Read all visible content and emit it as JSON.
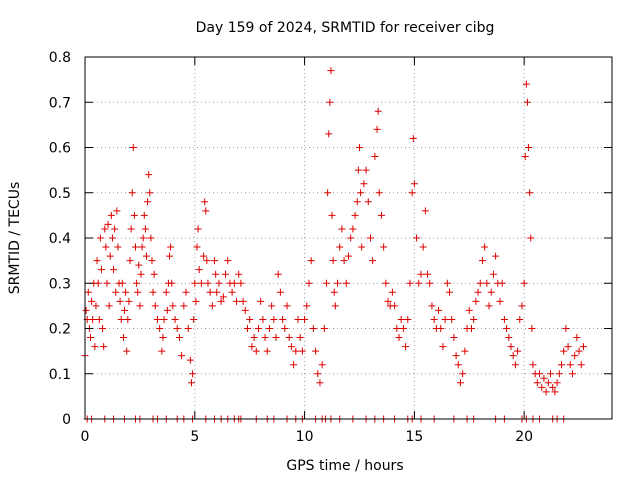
{
  "chart_data": {
    "type": "scatter",
    "title": "Day 159 of 2024, SRMTID for receiver cibg",
    "xlabel": "GPS time / hours",
    "ylabel": "SRMTID / TECUs",
    "xlim": [
      0,
      24
    ],
    "ylim": [
      0,
      0.8
    ],
    "xticks": [
      0,
      5,
      10,
      15,
      20
    ],
    "xtick_labels": [
      "0",
      "5",
      "10",
      "15",
      "20"
    ],
    "yticks": [
      0,
      0.1,
      0.2,
      0.3,
      0.4,
      0.5,
      0.6,
      0.7,
      0.8
    ],
    "ytick_labels": [
      "0",
      "0.1",
      "0.2",
      "0.3",
      "0.4",
      "0.5",
      "0.6",
      "0.7",
      "0.8"
    ],
    "grid": true,
    "marker": "+",
    "color": "#dd0000",
    "series": [
      {
        "name": "SRMTID",
        "points": [
          [
            0.0,
            0.14
          ],
          [
            0.05,
            0.24
          ],
          [
            0.1,
            0.22
          ],
          [
            0.15,
            0.28
          ],
          [
            0.2,
            0.2
          ],
          [
            0.25,
            0.18
          ],
          [
            0.3,
            0.26
          ],
          [
            0.35,
            0.22
          ],
          [
            0.4,
            0.3
          ],
          [
            0.45,
            0.16
          ],
          [
            0.5,
            0.25
          ],
          [
            0.55,
            0.35
          ],
          [
            0.6,
            0.3
          ],
          [
            0.65,
            0.22
          ],
          [
            0.7,
            0.4
          ],
          [
            0.75,
            0.33
          ],
          [
            0.8,
            0.2
          ],
          [
            0.85,
            0.16
          ],
          [
            0.9,
            0.42
          ],
          [
            0.95,
            0.38
          ],
          [
            1.0,
            0.3
          ],
          [
            1.05,
            0.43
          ],
          [
            1.1,
            0.25
          ],
          [
            1.15,
            0.36
          ],
          [
            1.2,
            0.45
          ],
          [
            1.25,
            0.4
          ],
          [
            1.3,
            0.33
          ],
          [
            1.35,
            0.42
          ],
          [
            1.4,
            0.28
          ],
          [
            1.45,
            0.46
          ],
          [
            1.5,
            0.38
          ],
          [
            1.55,
            0.3
          ],
          [
            1.6,
            0.26
          ],
          [
            1.65,
            0.22
          ],
          [
            1.7,
            0.3
          ],
          [
            1.75,
            0.18
          ],
          [
            1.8,
            0.24
          ],
          [
            1.85,
            0.28
          ],
          [
            1.9,
            0.15
          ],
          [
            1.95,
            0.22
          ],
          [
            2.0,
            0.26
          ],
          [
            2.05,
            0.35
          ],
          [
            2.1,
            0.42
          ],
          [
            2.15,
            0.5
          ],
          [
            2.2,
            0.6
          ],
          [
            2.25,
            0.45
          ],
          [
            2.3,
            0.38
          ],
          [
            2.35,
            0.3
          ],
          [
            2.4,
            0.28
          ],
          [
            2.45,
            0.34
          ],
          [
            2.5,
            0.25
          ],
          [
            2.55,
            0.32
          ],
          [
            2.6,
            0.38
          ],
          [
            2.65,
            0.4
          ],
          [
            2.7,
            0.45
          ],
          [
            2.75,
            0.42
          ],
          [
            2.8,
            0.36
          ],
          [
            2.85,
            0.48
          ],
          [
            2.9,
            0.54
          ],
          [
            2.95,
            0.5
          ],
          [
            3.0,
            0.4
          ],
          [
            3.05,
            0.35
          ],
          [
            3.1,
            0.28
          ],
          [
            3.15,
            0.32
          ],
          [
            3.2,
            0.25
          ],
          [
            3.3,
            0.22
          ],
          [
            3.4,
            0.2
          ],
          [
            3.5,
            0.15
          ],
          [
            3.55,
            0.18
          ],
          [
            3.6,
            0.22
          ],
          [
            3.7,
            0.28
          ],
          [
            3.75,
            0.24
          ],
          [
            3.8,
            0.3
          ],
          [
            3.85,
            0.36
          ],
          [
            3.9,
            0.38
          ],
          [
            3.95,
            0.3
          ],
          [
            4.0,
            0.25
          ],
          [
            4.1,
            0.22
          ],
          [
            4.2,
            0.2
          ],
          [
            4.3,
            0.18
          ],
          [
            4.4,
            0.14
          ],
          [
            4.5,
            0.25
          ],
          [
            4.6,
            0.28
          ],
          [
            4.7,
            0.2
          ],
          [
            4.8,
            0.13
          ],
          [
            4.85,
            0.08
          ],
          [
            4.9,
            0.1
          ],
          [
            4.95,
            0.22
          ],
          [
            5.0,
            0.3
          ],
          [
            5.05,
            0.26
          ],
          [
            5.1,
            0.38
          ],
          [
            5.15,
            0.42
          ],
          [
            5.2,
            0.33
          ],
          [
            5.3,
            0.3
          ],
          [
            5.4,
            0.36
          ],
          [
            5.45,
            0.48
          ],
          [
            5.5,
            0.46
          ],
          [
            5.55,
            0.35
          ],
          [
            5.6,
            0.3
          ],
          [
            5.7,
            0.28
          ],
          [
            5.8,
            0.25
          ],
          [
            5.9,
            0.35
          ],
          [
            5.95,
            0.32
          ],
          [
            6.0,
            0.28
          ],
          [
            6.1,
            0.3
          ],
          [
            6.2,
            0.26
          ],
          [
            6.3,
            0.27
          ],
          [
            6.4,
            0.32
          ],
          [
            6.5,
            0.35
          ],
          [
            6.6,
            0.3
          ],
          [
            6.7,
            0.28
          ],
          [
            6.8,
            0.3
          ],
          [
            6.9,
            0.26
          ],
          [
            7.0,
            0.32
          ],
          [
            7.1,
            0.3
          ],
          [
            7.2,
            0.26
          ],
          [
            7.3,
            0.24
          ],
          [
            7.4,
            0.2
          ],
          [
            7.5,
            0.22
          ],
          [
            7.6,
            0.16
          ],
          [
            7.7,
            0.18
          ],
          [
            7.8,
            0.15
          ],
          [
            7.9,
            0.2
          ],
          [
            8.0,
            0.26
          ],
          [
            8.1,
            0.22
          ],
          [
            8.2,
            0.18
          ],
          [
            8.3,
            0.15
          ],
          [
            8.4,
            0.2
          ],
          [
            8.5,
            0.25
          ],
          [
            8.6,
            0.22
          ],
          [
            8.7,
            0.18
          ],
          [
            8.8,
            0.32
          ],
          [
            8.9,
            0.28
          ],
          [
            9.0,
            0.22
          ],
          [
            9.1,
            0.2
          ],
          [
            9.2,
            0.25
          ],
          [
            9.3,
            0.18
          ],
          [
            9.4,
            0.16
          ],
          [
            9.5,
            0.12
          ],
          [
            9.6,
            0.15
          ],
          [
            9.7,
            0.22
          ],
          [
            9.8,
            0.18
          ],
          [
            9.9,
            0.15
          ],
          [
            10.0,
            0.22
          ],
          [
            10.1,
            0.25
          ],
          [
            10.2,
            0.3
          ],
          [
            10.3,
            0.35
          ],
          [
            10.4,
            0.2
          ],
          [
            10.5,
            0.15
          ],
          [
            10.6,
            0.1
          ],
          [
            10.7,
            0.08
          ],
          [
            10.8,
            0.12
          ],
          [
            10.9,
            0.2
          ],
          [
            11.0,
            0.3
          ],
          [
            11.05,
            0.5
          ],
          [
            11.1,
            0.63
          ],
          [
            11.15,
            0.7
          ],
          [
            11.2,
            0.77
          ],
          [
            11.25,
            0.45
          ],
          [
            11.3,
            0.35
          ],
          [
            11.35,
            0.28
          ],
          [
            11.4,
            0.25
          ],
          [
            11.5,
            0.3
          ],
          [
            11.6,
            0.38
          ],
          [
            11.7,
            0.42
          ],
          [
            11.8,
            0.35
          ],
          [
            11.9,
            0.3
          ],
          [
            12.0,
            0.36
          ],
          [
            12.1,
            0.4
          ],
          [
            12.2,
            0.42
          ],
          [
            12.3,
            0.45
          ],
          [
            12.4,
            0.48
          ],
          [
            12.45,
            0.55
          ],
          [
            12.5,
            0.6
          ],
          [
            12.55,
            0.5
          ],
          [
            12.6,
            0.38
          ],
          [
            12.7,
            0.52
          ],
          [
            12.8,
            0.55
          ],
          [
            12.9,
            0.48
          ],
          [
            13.0,
            0.4
          ],
          [
            13.1,
            0.35
          ],
          [
            13.2,
            0.58
          ],
          [
            13.3,
            0.64
          ],
          [
            13.35,
            0.68
          ],
          [
            13.4,
            0.5
          ],
          [
            13.5,
            0.45
          ],
          [
            13.6,
            0.38
          ],
          [
            13.7,
            0.3
          ],
          [
            13.8,
            0.26
          ],
          [
            13.9,
            0.25
          ],
          [
            14.0,
            0.28
          ],
          [
            14.1,
            0.25
          ],
          [
            14.2,
            0.2
          ],
          [
            14.3,
            0.18
          ],
          [
            14.4,
            0.22
          ],
          [
            14.5,
            0.2
          ],
          [
            14.6,
            0.16
          ],
          [
            14.7,
            0.22
          ],
          [
            14.8,
            0.3
          ],
          [
            14.9,
            0.5
          ],
          [
            14.95,
            0.62
          ],
          [
            15.0,
            0.52
          ],
          [
            15.1,
            0.4
          ],
          [
            15.2,
            0.3
          ],
          [
            15.3,
            0.32
          ],
          [
            15.4,
            0.38
          ],
          [
            15.5,
            0.46
          ],
          [
            15.6,
            0.32
          ],
          [
            15.7,
            0.3
          ],
          [
            15.8,
            0.25
          ],
          [
            15.9,
            0.22
          ],
          [
            16.0,
            0.2
          ],
          [
            16.1,
            0.24
          ],
          [
            16.2,
            0.2
          ],
          [
            16.3,
            0.16
          ],
          [
            16.4,
            0.22
          ],
          [
            16.5,
            0.3
          ],
          [
            16.6,
            0.28
          ],
          [
            16.7,
            0.22
          ],
          [
            16.8,
            0.18
          ],
          [
            16.9,
            0.14
          ],
          [
            17.0,
            0.12
          ],
          [
            17.1,
            0.08
          ],
          [
            17.2,
            0.1
          ],
          [
            17.3,
            0.15
          ],
          [
            17.4,
            0.2
          ],
          [
            17.5,
            0.24
          ],
          [
            17.6,
            0.2
          ],
          [
            17.7,
            0.22
          ],
          [
            17.8,
            0.26
          ],
          [
            17.9,
            0.28
          ],
          [
            18.0,
            0.3
          ],
          [
            18.1,
            0.35
          ],
          [
            18.2,
            0.38
          ],
          [
            18.3,
            0.3
          ],
          [
            18.4,
            0.25
          ],
          [
            18.5,
            0.28
          ],
          [
            18.6,
            0.32
          ],
          [
            18.7,
            0.36
          ],
          [
            18.8,
            0.3
          ],
          [
            18.9,
            0.26
          ],
          [
            19.0,
            0.3
          ],
          [
            19.1,
            0.22
          ],
          [
            19.2,
            0.2
          ],
          [
            19.3,
            0.18
          ],
          [
            19.4,
            0.16
          ],
          [
            19.5,
            0.14
          ],
          [
            19.6,
            0.12
          ],
          [
            19.7,
            0.15
          ],
          [
            19.8,
            0.22
          ],
          [
            19.9,
            0.25
          ],
          [
            20.0,
            0.3
          ],
          [
            20.05,
            0.58
          ],
          [
            20.1,
            0.74
          ],
          [
            20.15,
            0.7
          ],
          [
            20.2,
            0.6
          ],
          [
            20.25,
            0.5
          ],
          [
            20.3,
            0.4
          ],
          [
            20.35,
            0.2
          ],
          [
            20.4,
            0.12
          ],
          [
            20.5,
            0.1
          ],
          [
            20.6,
            0.08
          ],
          [
            20.7,
            0.1
          ],
          [
            20.8,
            0.07
          ],
          [
            20.9,
            0.09
          ],
          [
            21.0,
            0.06
          ],
          [
            21.1,
            0.08
          ],
          [
            21.2,
            0.1
          ],
          [
            21.3,
            0.07
          ],
          [
            21.4,
            0.06
          ],
          [
            21.5,
            0.08
          ],
          [
            21.6,
            0.1
          ],
          [
            21.7,
            0.12
          ],
          [
            21.8,
            0.15
          ],
          [
            21.9,
            0.2
          ],
          [
            22.0,
            0.16
          ],
          [
            22.1,
            0.12
          ],
          [
            22.2,
            0.1
          ],
          [
            22.3,
            0.14
          ],
          [
            22.4,
            0.18
          ],
          [
            22.5,
            0.15
          ],
          [
            22.6,
            0.12
          ],
          [
            22.7,
            0.16
          ]
        ]
      }
    ],
    "zero_markers_x": [
      0.1,
      0.3,
      0.9,
      1.3,
      1.8,
      2.3,
      2.5,
      3.1,
      3.3,
      3.7,
      4.2,
      4.5,
      4.9,
      5.5,
      5.9,
      6.2,
      6.5,
      6.8,
      7.0,
      7.1,
      7.8,
      8.3,
      8.6,
      9.2,
      9.6,
      9.9,
      10.5,
      10.8,
      10.95,
      11.2,
      11.6,
      12.2,
      12.8,
      13.2,
      13.6,
      14.1,
      14.7,
      14.9,
      15.3,
      15.9,
      16.8,
      17.4,
      17.7,
      18.7,
      19.1,
      19.9,
      20.1,
      20.4,
      20.7,
      21.3,
      21.5,
      21.8
    ]
  }
}
